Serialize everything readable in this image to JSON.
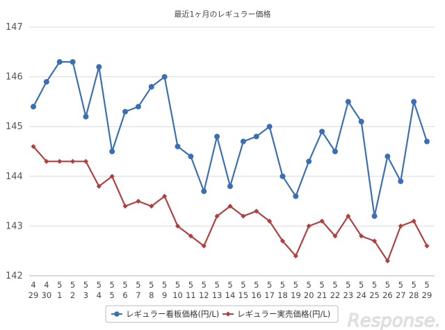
{
  "chart_data": {
    "type": "line",
    "title": "最近1ヶ月のレギュラー価格",
    "xlabel": "",
    "ylabel": "",
    "ylim": [
      142,
      147
    ],
    "yticks": [
      142,
      143,
      144,
      145,
      146,
      147
    ],
    "grid": true,
    "legend_position": "bottom",
    "categories": [
      {
        "month": "4",
        "day": "29"
      },
      {
        "month": "4",
        "day": "30"
      },
      {
        "month": "5",
        "day": "1"
      },
      {
        "month": "5",
        "day": "2"
      },
      {
        "month": "5",
        "day": "3"
      },
      {
        "month": "5",
        "day": "4"
      },
      {
        "month": "5",
        "day": "5"
      },
      {
        "month": "5",
        "day": "6"
      },
      {
        "month": "5",
        "day": "7"
      },
      {
        "month": "5",
        "day": "8"
      },
      {
        "month": "5",
        "day": "9"
      },
      {
        "month": "5",
        "day": "10"
      },
      {
        "month": "5",
        "day": "11"
      },
      {
        "month": "5",
        "day": "12"
      },
      {
        "month": "5",
        "day": "13"
      },
      {
        "month": "5",
        "day": "14"
      },
      {
        "month": "5",
        "day": "15"
      },
      {
        "month": "5",
        "day": "16"
      },
      {
        "month": "5",
        "day": "17"
      },
      {
        "month": "5",
        "day": "18"
      },
      {
        "month": "5",
        "day": "19"
      },
      {
        "month": "5",
        "day": "20"
      },
      {
        "month": "5",
        "day": "21"
      },
      {
        "month": "5",
        "day": "22"
      },
      {
        "month": "5",
        "day": "23"
      },
      {
        "month": "5",
        "day": "24"
      },
      {
        "month": "5",
        "day": "25"
      },
      {
        "month": "5",
        "day": "26"
      },
      {
        "month": "5",
        "day": "27"
      },
      {
        "month": "5",
        "day": "28"
      },
      {
        "month": "5",
        "day": "29"
      }
    ],
    "series": [
      {
        "name": "レギュラー看板価格(円/L)",
        "color": "#3a6fb5",
        "marker": "circle",
        "values": [
          145.4,
          145.9,
          146.3,
          146.3,
          145.2,
          146.2,
          144.5,
          145.3,
          145.4,
          145.8,
          146.0,
          144.6,
          144.4,
          143.7,
          144.8,
          143.8,
          144.7,
          144.8,
          145.0,
          144.0,
          143.6,
          144.3,
          144.9,
          144.5,
          145.5,
          145.1,
          143.2,
          144.4,
          143.9,
          145.5,
          144.7
        ]
      },
      {
        "name": "レギュラー実売価格(円/L)",
        "color": "#b04040",
        "marker": "diamond",
        "values": [
          144.6,
          144.3,
          144.3,
          144.3,
          144.3,
          143.8,
          144.0,
          143.4,
          143.5,
          143.4,
          143.6,
          143.0,
          142.8,
          142.6,
          143.2,
          143.4,
          143.2,
          143.3,
          143.1,
          142.7,
          142.4,
          143.0,
          143.1,
          142.8,
          143.2,
          142.8,
          142.7,
          142.3,
          143.0,
          143.1,
          142.6
        ]
      }
    ]
  },
  "watermark": "Response."
}
